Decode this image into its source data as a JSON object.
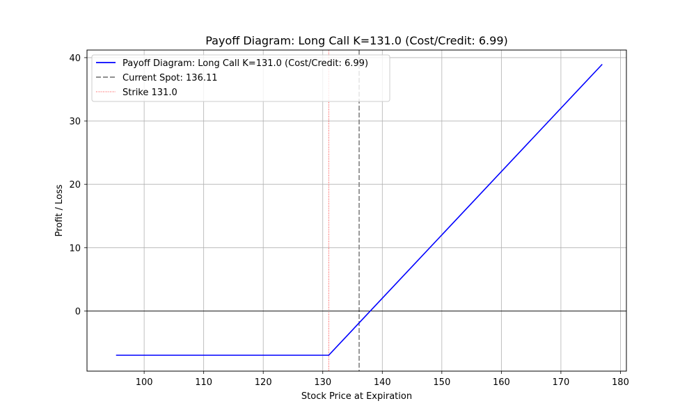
{
  "chart_data": {
    "type": "line",
    "title": "Payoff Diagram: Long Call K=131.0 (Cost/Credit: 6.99)",
    "xlabel": "Stock Price at Expiration",
    "ylabel": "Profit / Loss",
    "xlim": [
      90.4,
      181.0
    ],
    "ylim": [
      -9.5,
      41.2
    ],
    "xticks": [
      100,
      110,
      120,
      130,
      140,
      150,
      160,
      170,
      180
    ],
    "yticks": [
      0,
      10,
      20,
      30,
      40
    ],
    "grid": true,
    "legend_position": "top-left",
    "series": [
      {
        "name": "Payoff Diagram: Long Call K=131.0 (Cost/Credit: 6.99)",
        "style": "solid",
        "color": "#0000ff",
        "x": [
          95.28,
          131.0,
          176.94
        ],
        "y": [
          -6.99,
          -6.99,
          38.95
        ]
      }
    ],
    "reference_lines": [
      {
        "name": "Current Spot: 136.11",
        "orientation": "vertical",
        "value": 136.11,
        "style": "dashed",
        "color": "#808080"
      },
      {
        "name": "Strike 131.0",
        "orientation": "vertical",
        "value": 131.0,
        "style": "dotted",
        "color": "#ff0000"
      },
      {
        "name": "",
        "orientation": "horizontal",
        "value": 0,
        "style": "solid",
        "color": "#000000"
      }
    ]
  }
}
